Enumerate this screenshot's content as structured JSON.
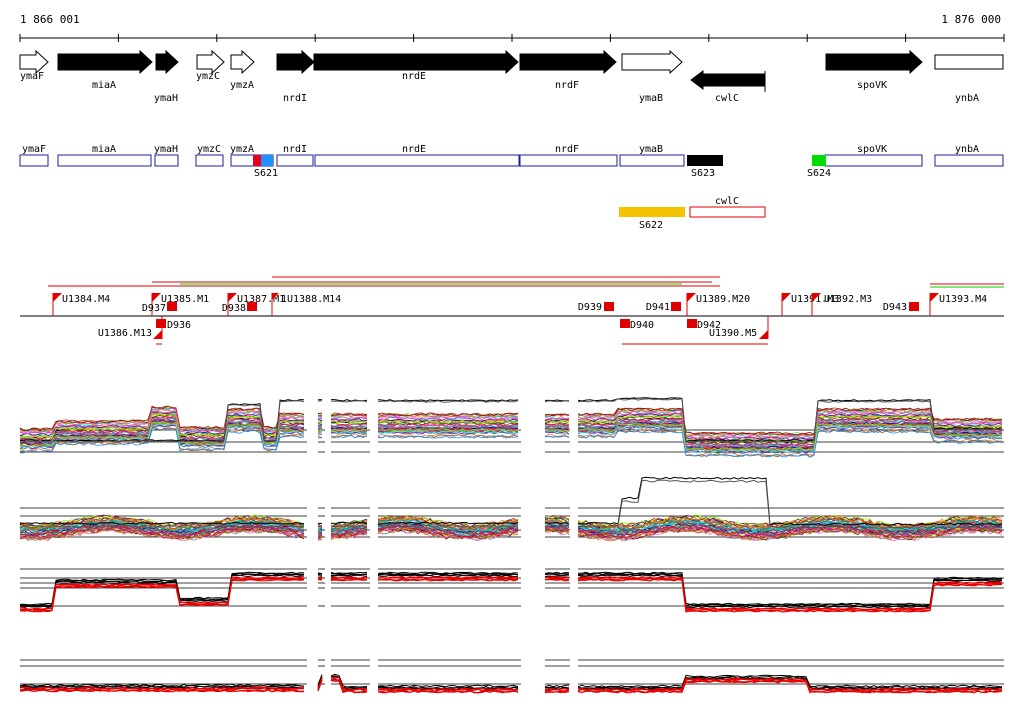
{
  "ruler": {
    "start_label": "1 866 001",
    "end_label": "1 876 000"
  },
  "genes_track": [
    {
      "name": "ymaF",
      "strand": "+",
      "filled": false
    },
    {
      "name": "miaA",
      "strand": "+",
      "filled": true
    },
    {
      "name": "ymaH",
      "strand": "+",
      "filled": true
    },
    {
      "name": "ymzC",
      "strand": "+",
      "filled": false
    },
    {
      "name": "ymzA",
      "strand": "+",
      "filled": false
    },
    {
      "name": "nrdI",
      "strand": "+",
      "filled": true
    },
    {
      "name": "nrdE",
      "strand": "+",
      "filled": true
    },
    {
      "name": "nrdF",
      "strand": "+",
      "filled": true
    },
    {
      "name": "ymaB",
      "strand": "+",
      "filled": false
    },
    {
      "name": "cwlC",
      "strand": "-",
      "filled": true
    },
    {
      "name": "spoVK",
      "strand": "+",
      "filled": true
    },
    {
      "name": "ynbA",
      "strand": "+",
      "filled": false
    }
  ],
  "box_track": [
    "ymaF",
    "miaA",
    "ymaH",
    "ymzC",
    "ymzA",
    "nrdI",
    "nrdE",
    "nrdF",
    "ymaB",
    "spoVK",
    "ynbA"
  ],
  "segments": [
    {
      "label": "S621",
      "color": "#e8001c"
    },
    {
      "label": "S621",
      "color": "#1e90ff"
    },
    {
      "label": "S623",
      "color": "#000000"
    },
    {
      "label": "S624",
      "color": "#00dd00"
    },
    {
      "label": "S622",
      "color": "#f5c400"
    }
  ],
  "cwlc_box": {
    "label": "cwlC",
    "color": "#e00000"
  },
  "upper_markers": [
    {
      "label": "U1384.M4",
      "kind": "flag"
    },
    {
      "label": "U1385.M1",
      "kind": "flag"
    },
    {
      "label": "D937",
      "kind": "box"
    },
    {
      "label": "D938",
      "kind": "box"
    },
    {
      "label": "U1387.M1",
      "kind": "flag"
    },
    {
      "label": "1",
      "kind": "flag"
    },
    {
      "label": "U1388.M14",
      "kind": "flag"
    },
    {
      "label": "D939",
      "kind": "box"
    },
    {
      "label": "D941",
      "kind": "box"
    },
    {
      "label": "U1389.M20",
      "kind": "flag"
    },
    {
      "label": "U1391.M3",
      "kind": "flag"
    },
    {
      "label": "U1392.M3",
      "kind": "flag"
    },
    {
      "label": "D943",
      "kind": "box"
    },
    {
      "label": "U1393.M4",
      "kind": "flag"
    }
  ],
  "lower_markers": [
    {
      "label": "U1386.M13",
      "kind": "flag"
    },
    {
      "label": "D936",
      "kind": "box"
    },
    {
      "label": "D940",
      "kind": "box"
    },
    {
      "label": "D942",
      "kind": "box"
    },
    {
      "label": "U1390.M5",
      "kind": "flag"
    }
  ],
  "colors": {
    "gene_outline": "#1c1c9c",
    "marker": "#ff0000",
    "trace_a": "#000000",
    "trace_b": "#e80000"
  }
}
